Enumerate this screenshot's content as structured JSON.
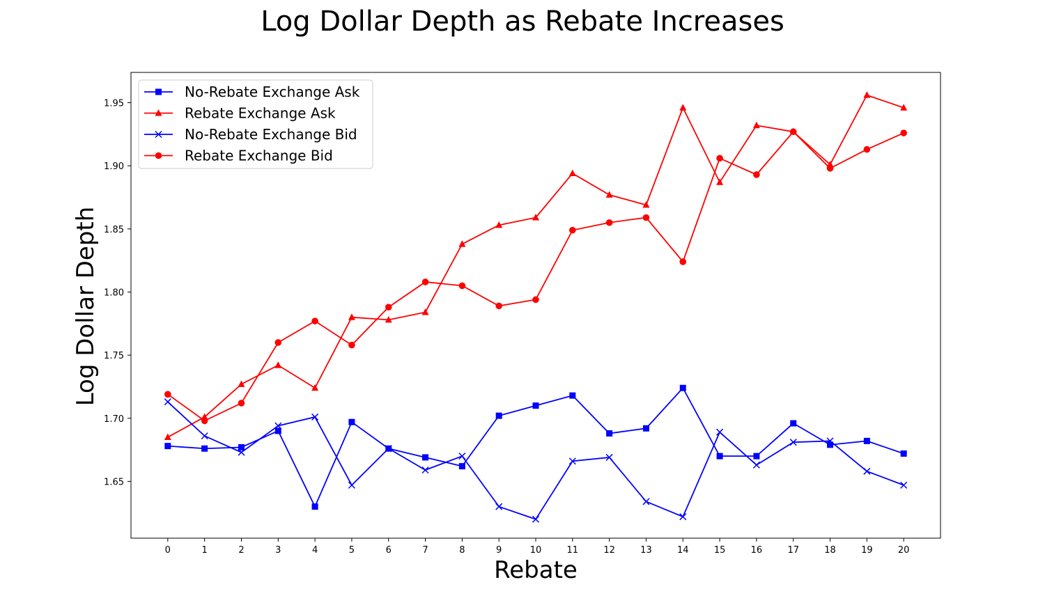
{
  "chart_data": {
    "type": "line",
    "title": "Log Dollar Depth as Rebate Increases",
    "xlabel": "Rebate",
    "ylabel": "Log Dollar Depth",
    "x": [
      0,
      1,
      2,
      3,
      4,
      5,
      6,
      7,
      8,
      9,
      10,
      11,
      12,
      13,
      14,
      15,
      16,
      17,
      18,
      19,
      20
    ],
    "x_ticks": [
      "0",
      "1",
      "2",
      "3",
      "4",
      "5",
      "6",
      "7",
      "8",
      "9",
      "10",
      "11",
      "12",
      "13",
      "14",
      "15",
      "16",
      "17",
      "18",
      "19",
      "20"
    ],
    "y_ticks": [
      "1.65",
      "1.70",
      "1.75",
      "1.80",
      "1.85",
      "1.90",
      "1.95"
    ],
    "xlim": [
      -1,
      21
    ],
    "ylim": [
      1.605,
      1.974
    ],
    "grid": false,
    "legend_position": "top-left",
    "series": [
      {
        "name": "No-Rebate Exchange Ask",
        "color": "#0000ff",
        "marker": "square",
        "values": [
          1.678,
          1.676,
          1.677,
          1.69,
          1.63,
          1.697,
          1.676,
          1.669,
          1.662,
          1.702,
          1.71,
          1.718,
          1.688,
          1.692,
          1.724,
          1.67,
          1.67,
          1.696,
          1.679,
          1.682,
          1.672
        ]
      },
      {
        "name": "Rebate Exchange Ask",
        "color": "#ff0000",
        "marker": "triangle",
        "values": [
          1.685,
          1.701,
          1.727,
          1.742,
          1.724,
          1.78,
          1.778,
          1.784,
          1.838,
          1.853,
          1.859,
          1.894,
          1.877,
          1.869,
          1.946,
          1.887,
          1.932,
          1.927,
          1.901,
          1.956,
          1.946
        ]
      },
      {
        "name": "No-Rebate Exchange Bid",
        "color": "#0000ff",
        "marker": "x",
        "values": [
          1.713,
          1.686,
          1.673,
          1.694,
          1.701,
          1.647,
          1.676,
          1.659,
          1.67,
          1.63,
          1.62,
          1.666,
          1.669,
          1.634,
          1.622,
          1.689,
          1.663,
          1.681,
          1.682,
          1.658,
          1.647
        ]
      },
      {
        "name": "Rebate Exchange Bid",
        "color": "#ff0000",
        "marker": "circle",
        "values": [
          1.719,
          1.698,
          1.712,
          1.76,
          1.777,
          1.758,
          1.788,
          1.808,
          1.805,
          1.789,
          1.794,
          1.849,
          1.855,
          1.859,
          1.824,
          1.906,
          1.893,
          1.927,
          1.898,
          1.913,
          1.926
        ]
      }
    ]
  }
}
